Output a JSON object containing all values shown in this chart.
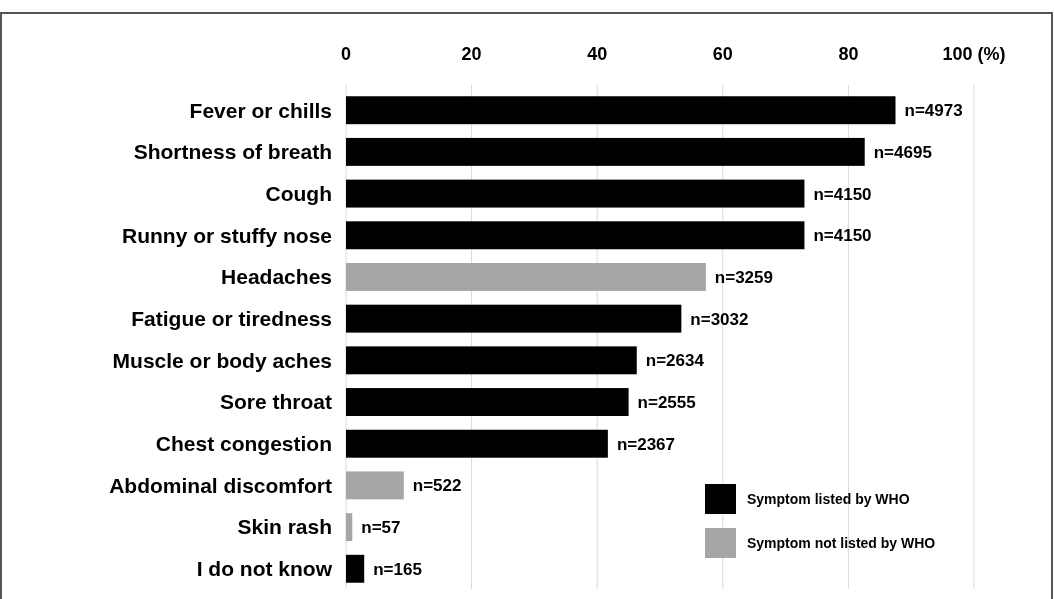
{
  "chart_data": {
    "type": "bar",
    "orientation": "horizontal",
    "categories": [
      "Fever or chills",
      "Shortness of breath",
      "Cough",
      "Runny or stuffy nose",
      "Headaches",
      "Fatigue or tiredness",
      "Muscle or body aches",
      "Sore throat",
      "Chest congestion",
      "Abdominal discomfort",
      "Skin rash",
      "I do not know"
    ],
    "series": [
      {
        "name": "Symptom listed by WHO",
        "color": "#000000",
        "values": [
          87.5,
          82.6,
          73.0,
          73.0,
          null,
          53.4,
          46.3,
          45.0,
          41.7,
          null,
          null,
          2.9
        ]
      },
      {
        "name": "Symptom not listed by WHO",
        "color": "#a6a6a6",
        "values": [
          null,
          null,
          null,
          null,
          57.3,
          null,
          null,
          null,
          null,
          9.2,
          1.0,
          null
        ]
      }
    ],
    "annotations": [
      {
        "text": "n=4973",
        "x": 87.5,
        "y": "Fever or chills"
      },
      {
        "text": "n=4695",
        "x": 82.6,
        "y": "Shortness of breath"
      },
      {
        "text": "n=4150",
        "x": 73.0,
        "y": "Cough"
      },
      {
        "text": "n=4150",
        "x": 73.0,
        "y": "Runny or stuffy nose"
      },
      {
        "text": "n=3259",
        "x": 57.3,
        "y": "Headaches"
      },
      {
        "text": "n=3032",
        "x": 53.4,
        "y": "Fatigue or tiredness"
      },
      {
        "text": "n=2634",
        "x": 46.3,
        "y": "Muscle or body aches"
      },
      {
        "text": "n=2555",
        "x": 45.0,
        "y": "Sore throat"
      },
      {
        "text": "n=2367",
        "x": 41.7,
        "y": "Chest congestion"
      },
      {
        "text": "n=522",
        "x": 9.2,
        "y": "Abdominal discomfort"
      },
      {
        "text": "n=57",
        "x": 1.0,
        "y": "Skin rash"
      },
      {
        "text": "n=165",
        "x": 2.9,
        "y": "I do not know"
      }
    ],
    "xlim": [
      0,
      100
    ],
    "xticks": [
      0,
      20,
      40,
      60,
      80,
      {
        "value": 100,
        "label": "100 (%)"
      }
    ],
    "grid": "x",
    "legend": "bottom right"
  }
}
